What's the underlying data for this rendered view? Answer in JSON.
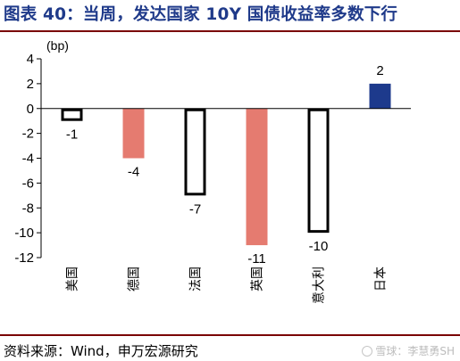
{
  "title": "图表 40：当周，发达国家 10Y 国债收益率多数下行",
  "source": "资料来源：Wind，申万宏源研究",
  "watermark": "雪球：李慧勇SH",
  "colors": {
    "title": "#1f3a8a",
    "rule": "#7a0000",
    "salmon": "#e57b70",
    "navy": "#1d3a8c",
    "outline": "#000000"
  },
  "chart_data": {
    "type": "bar",
    "unit_label": "(bp)",
    "categories": [
      "美国",
      "德国",
      "法国",
      "英国",
      "意大利",
      "日本"
    ],
    "values": [
      -1,
      -4,
      -7,
      -11,
      -10,
      2
    ],
    "data_labels": [
      "-1",
      "-4",
      "-7",
      "-11",
      "-10",
      "2"
    ],
    "bar_styles": [
      "outline",
      "salmon",
      "outline",
      "salmon",
      "outline",
      "navy"
    ],
    "ylim": [
      -12,
      4
    ],
    "yticks": [
      4,
      2,
      0,
      -2,
      -4,
      -6,
      -8,
      -10,
      -12
    ],
    "grid": false,
    "legend": "none"
  }
}
